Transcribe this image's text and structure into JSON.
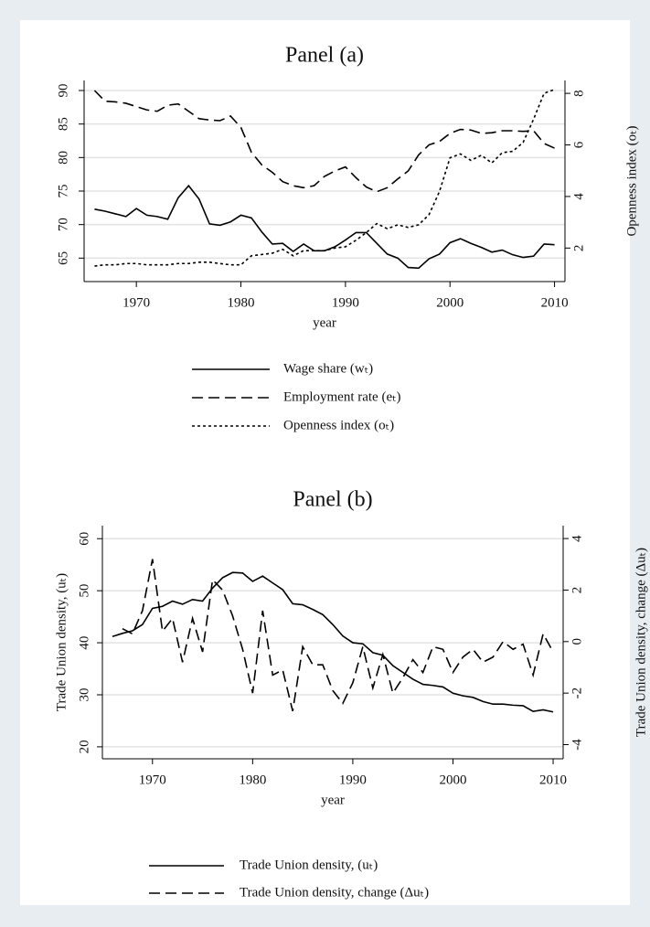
{
  "chart_data": [
    {
      "type": "line",
      "title": "Panel (a)",
      "xlabel": "year",
      "y2label": "Openness index (oₜ)",
      "x": [
        1966,
        1967,
        1968,
        1969,
        1970,
        1971,
        1972,
        1973,
        1974,
        1975,
        1976,
        1977,
        1978,
        1979,
        1980,
        1981,
        1982,
        1983,
        1984,
        1985,
        1986,
        1987,
        1988,
        1989,
        1990,
        1991,
        1992,
        1993,
        1994,
        1995,
        1996,
        1997,
        1998,
        1999,
        2000,
        2001,
        2002,
        2003,
        2004,
        2005,
        2006,
        2007,
        2008,
        2009,
        2010
      ],
      "xlim": [
        1965,
        2011
      ],
      "xticks": [
        1970,
        1980,
        1990,
        2000,
        2010
      ],
      "ylim": [
        61.5,
        91.5
      ],
      "yticks": [
        65,
        70,
        75,
        80,
        85,
        90
      ],
      "y2lim": [
        0.7,
        8.5
      ],
      "y2ticks": [
        2,
        4,
        6,
        8
      ],
      "grid": true,
      "series": [
        {
          "name": "Wage share (wₜ)",
          "color": "#000000",
          "style": "solid",
          "values": [
            72.3,
            72,
            71.6,
            71.2,
            72.4,
            71.4,
            71.2,
            70.8,
            74,
            75.8,
            73.8,
            70.1,
            69.9,
            70.4,
            71.4,
            71,
            68.9,
            67.1,
            67.2,
            66,
            67.1,
            66.1,
            66.1,
            66.7,
            67.7,
            68.8,
            68.8,
            67.2,
            65.6,
            65,
            63.6,
            63.5,
            64.9,
            65.6,
            67.3,
            67.9,
            67.2,
            66.6,
            65.9,
            66.2,
            65.5,
            65.1,
            65.3,
            67.1,
            67
          ]
        },
        {
          "name": "Employment rate (eₜ)",
          "color": "#000000",
          "style": "dashed",
          "values": [
            90,
            88.4,
            88.3,
            88.1,
            87.6,
            87.1,
            86.9,
            87.8,
            88,
            86.9,
            85.8,
            85.6,
            85.5,
            86.2,
            84.5,
            80.8,
            78.9,
            77.8,
            76.4,
            75.8,
            75.5,
            75.8,
            77.2,
            78,
            78.6,
            77,
            75.6,
            74.9,
            75.5,
            76.8,
            78,
            80.4,
            81.9,
            82.4,
            83.6,
            84.2,
            84.1,
            83.6,
            83.7,
            84,
            84,
            83.9,
            84,
            82.1,
            81.4
          ]
        },
        {
          "name": "Openness index (oₜ)",
          "color": "#000000",
          "style": "dotted",
          "axis": "y2",
          "values": [
            1.3,
            1.35,
            1.35,
            1.4,
            1.4,
            1.35,
            1.35,
            1.35,
            1.4,
            1.4,
            1.45,
            1.45,
            1.4,
            1.35,
            1.35,
            1.7,
            1.75,
            1.8,
            1.95,
            1.7,
            1.9,
            1.9,
            1.9,
            2,
            2.05,
            2.3,
            2.6,
            2.95,
            2.75,
            2.9,
            2.8,
            2.9,
            3.3,
            4.2,
            5.5,
            5.65,
            5.4,
            5.6,
            5.3,
            5.7,
            5.75,
            6.1,
            7,
            8,
            8.15
          ]
        }
      ]
    },
    {
      "type": "line",
      "title": "Panel (b)",
      "xlabel": "year",
      "ylabel": "Trade Union density, (uₜ)",
      "y2label": "Trade Union density, change (Δuₜ)",
      "x": [
        1966,
        1967,
        1968,
        1969,
        1970,
        1971,
        1972,
        1973,
        1974,
        1975,
        1976,
        1977,
        1978,
        1979,
        1980,
        1981,
        1982,
        1983,
        1984,
        1985,
        1986,
        1987,
        1988,
        1989,
        1990,
        1991,
        1992,
        1993,
        1994,
        1995,
        1996,
        1997,
        1998,
        1999,
        2000,
        2001,
        2002,
        2003,
        2004,
        2005,
        2006,
        2007,
        2008,
        2009,
        2010
      ],
      "xlim": [
        1965,
        2011
      ],
      "xticks": [
        1970,
        1980,
        1990,
        2000,
        2010
      ],
      "ylim": [
        17.7,
        62.5
      ],
      "yticks": [
        20,
        30,
        40,
        50,
        60
      ],
      "y2lim": [
        -4.55,
        4.5
      ],
      "y2ticks": [
        -4,
        -2,
        0,
        2,
        4
      ],
      "grid": true,
      "series": [
        {
          "name": "Trade Union density, (uₜ)",
          "color": "#000000",
          "style": "solid",
          "values": [
            41.2,
            41.8,
            42.3,
            43.5,
            46.6,
            47,
            48,
            47.4,
            48.3,
            48,
            50.5,
            52.5,
            53.5,
            53.4,
            51.8,
            52.8,
            51.5,
            50.2,
            47.5,
            47.3,
            46.4,
            45.4,
            43.5,
            41.3,
            40,
            39.8,
            38.1,
            37.6,
            35.6,
            34.3,
            33,
            32,
            31.8,
            31.5,
            30.3,
            29.8,
            29.5,
            28.7,
            28.2,
            28.2,
            28,
            27.9,
            26.8,
            27.1,
            26.7
          ]
        },
        {
          "name": "Trade Union density, change (Δuₜ)",
          "color": "#000000",
          "style": "dashed",
          "axis": "y2",
          "values": [
            null,
            0.5,
            0.3,
            1.2,
            3.2,
            0.4,
            0.9,
            -0.8,
            0.9,
            -0.4,
            2.4,
            2,
            1,
            -0.3,
            -2,
            1.2,
            -1.3,
            -1.1,
            -2.7,
            -0.2,
            -0.9,
            -0.9,
            -1.9,
            -2.4,
            -1.6,
            -0.2,
            -1.8,
            -0.5,
            -2,
            -1.4,
            -0.7,
            -1.2,
            -0.2,
            -0.3,
            -1.2,
            -0.6,
            -0.3,
            -0.8,
            -0.6,
            0,
            -0.3,
            -0.1,
            -1.3,
            0.3,
            -0.4
          ]
        }
      ]
    }
  ]
}
